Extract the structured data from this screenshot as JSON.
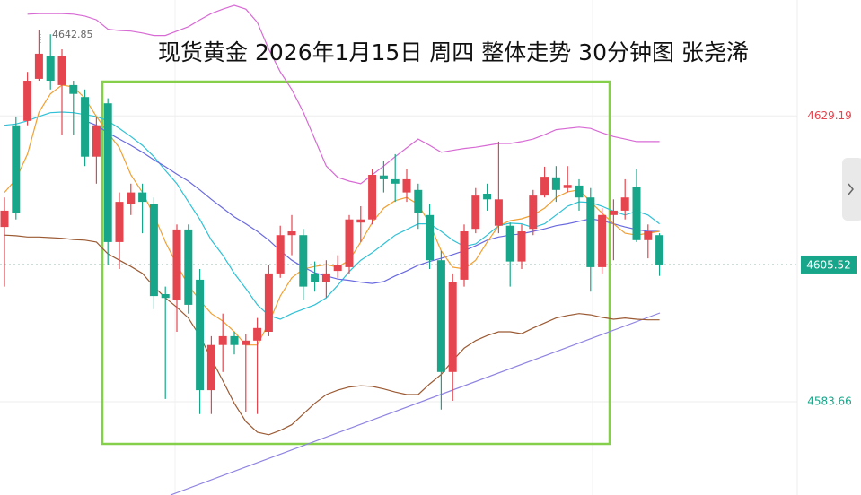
{
  "chart_data": {
    "type": "candlestick",
    "title": "现货黄金 2026年1月15日 周四 整体走势 30分钟图 张尧浠",
    "ylim": [
      4568.8,
      4647.66
    ],
    "yticks": [
      4629.19,
      4605.52,
      4583.66
    ],
    "ytick_colors": [
      "#e5454f",
      "#17a689",
      "#17a689"
    ],
    "ytick_styles": [
      "text",
      "box",
      "text"
    ],
    "grid": true,
    "up_color": "#e5454f",
    "down_color": "#17a689",
    "open": [
      4611.5,
      4627.7,
      4628.4,
      4635.1,
      4638.8,
      4634.1,
      4634.1,
      4632.2,
      4622.7,
      4631.2,
      4609.1,
      4615.1,
      4617.0,
      4615.1,
      4600.8,
      4599.8,
      4611.1,
      4603.1,
      4585.5,
      4592.7,
      4594.1,
      4592.7,
      4593.4,
      4594.8,
      4604.1,
      4610.2,
      4610.2,
      4604.1,
      4602.7,
      4604.5,
      4605.1,
      4612.2,
      4612.7,
      4619.7,
      4619.1,
      4617.0,
      4617.4,
      4613.4,
      4606.2,
      4588.4,
      4603.1,
      4611.2,
      4616.8,
      4611.7,
      4611.7,
      4606.0,
      4611.2,
      4616.5,
      4619.4,
      4617.7,
      4618.1,
      4616.2,
      4605.1,
      4613.4,
      4614.1,
      4617.9,
      4609.4,
      4610.2
    ],
    "high": [
      4616.2,
      4629.1,
      4636.2,
      4642.85,
      4642.2,
      4639.8,
      4634.8,
      4633.4,
      4629.1,
      4632.0,
      4617.0,
      4618.4,
      4618.4,
      4616.2,
      4602.0,
      4611.9,
      4611.9,
      4604.8,
      4594.1,
      4597.7,
      4594.8,
      4594.5,
      4597.0,
      4605.5,
      4611.7,
      4613.4,
      4611.2,
      4606.0,
      4606.2,
      4607.0,
      4613.4,
      4614.8,
      4620.8,
      4622.0,
      4623.1,
      4620.8,
      4618.4,
      4615.1,
      4607.7,
      4604.1,
      4611.9,
      4617.7,
      4618.4,
      4625.1,
      4612.2,
      4611.9,
      4617.4,
      4621.1,
      4621.2,
      4621.2,
      4619.1,
      4617.7,
      4614.5,
      4615.9,
      4619.1,
      4620.8,
      4611.9,
      4610.5
    ],
    "low": [
      4602.0,
      4612.7,
      4627.7,
      4634.8,
      4633.4,
      4626.2,
      4626.2,
      4621.2,
      4618.4,
      4605.5,
      4604.8,
      4613.4,
      4610.5,
      4598.4,
      4584.1,
      4594.8,
      4597.7,
      4581.7,
      4581.7,
      4588.4,
      4591.2,
      4582.0,
      4581.7,
      4594.1,
      4603.4,
      4607.0,
      4599.8,
      4601.2,
      4600.2,
      4603.4,
      4604.1,
      4609.1,
      4611.9,
      4617.0,
      4615.5,
      4615.5,
      4611.2,
      4604.8,
      4582.4,
      4583.8,
      4602.0,
      4610.5,
      4614.1,
      4610.5,
      4602.0,
      4604.8,
      4610.2,
      4616.2,
      4615.5,
      4617.0,
      4614.1,
      4601.2,
      4604.1,
      4606.2,
      4612.7,
      4609.1,
      4606.5,
      4603.7
    ],
    "close": [
      4614.1,
      4613.7,
      4634.8,
      4639.1,
      4634.8,
      4638.8,
      4632.7,
      4622.7,
      4627.7,
      4609.1,
      4615.5,
      4617.0,
      4615.5,
      4600.5,
      4600.2,
      4611.1,
      4599.1,
      4585.5,
      4592.7,
      4594.1,
      4592.7,
      4593.4,
      4595.4,
      4604.1,
      4610.2,
      4610.8,
      4602.0,
      4602.7,
      4604.1,
      4605.5,
      4612.7,
      4612.7,
      4619.8,
      4619.1,
      4618.4,
      4619.1,
      4613.7,
      4606.2,
      4588.4,
      4602.7,
      4610.8,
      4616.5,
      4615.9,
      4615.9,
      4606.0,
      4610.8,
      4616.5,
      4619.5,
      4617.4,
      4618.2,
      4616.2,
      4605.1,
      4613.4,
      4614.1,
      4616.2,
      4609.4,
      4610.8,
      4605.52
    ],
    "series": [
      {
        "color": "#d76ad4",
        "values": [
          null,
          null,
          4645.4,
          4645.5,
          4645.5,
          4645.5,
          4645.4,
          4645.1,
          4644.5,
          4643.0,
          4642.8,
          4642.7,
          4642.4,
          4642.0,
          4642.0,
          4642.7,
          4643.4,
          4644.5,
          4645.5,
          4646.2,
          4646.8,
          4646.2,
          4644.1,
          4639.8,
          4636.2,
          4633.4,
          4629.8,
          4625.5,
          4621.2,
          4619.4,
          4618.8,
          4618.4,
          4619.8,
          4621.2,
          4622.7,
          4624.1,
          4625.5,
          4624.5,
          4623.4,
          4623.7,
          4624.0,
          4624.2,
          4624.5,
          4624.8,
          4624.8,
          4625.1,
          4625.5,
          4626.2,
          4627.0,
          4627.2,
          4627.4,
          4627.2,
          4626.5,
          4625.9,
          4625.5,
          4625.1,
          4625.1,
          4625.1
        ]
      },
      {
        "color": "#9b5a33",
        "values": [
          4610.2,
          4610.1,
          4609.9,
          4609.9,
          4609.8,
          4609.7,
          4609.5,
          4609.4,
          4609.1,
          4607.2,
          4606.2,
          4605.2,
          4604.1,
          4602.0,
          4600.2,
          4598.7,
          4597.0,
          4594.1,
          4590.5,
          4587.0,
          4583.4,
          4580.5,
          4578.8,
          4578.4,
          4579.1,
          4580.0,
          4581.7,
          4583.4,
          4584.8,
          4585.5,
          4586.0,
          4586.2,
          4586.1,
          4585.7,
          4585.2,
          4584.8,
          4584.8,
          4586.5,
          4588.0,
          4590.2,
          4592.2,
          4593.4,
          4594.2,
          4594.8,
          4594.8,
          4594.5,
          4595.4,
          4596.2,
          4597.0,
          4597.4,
          4597.7,
          4597.5,
          4597.1,
          4596.8,
          4597.0,
          4596.8,
          4596.7,
          4596.7
        ]
      },
      {
        "color": "#2fc1d6",
        "values": [
          4627.7,
          4627.9,
          4628.4,
          4629.1,
          4629.7,
          4629.8,
          4629.7,
          4629.4,
          4629.1,
          4628.4,
          4627.2,
          4625.9,
          4624.5,
          4622.7,
          4620.5,
          4618.4,
          4615.5,
          4612.7,
          4609.4,
          4607.0,
          4604.1,
          4601.7,
          4599.1,
          4597.4,
          4596.8,
          4597.7,
          4598.4,
          4599.1,
          4600.2,
          4602.2,
          4604.4,
          4606.2,
          4607.4,
          4608.8,
          4610.2,
          4611.1,
          4612.0,
          4612.0,
          4610.8,
          4609.4,
          4608.4,
          4608.8,
          4610.2,
          4611.7,
          4612.1,
          4612.0,
          4611.4,
          4612.0,
          4613.4,
          4614.8,
          4615.5,
          4615.4,
          4614.8,
          4614.0,
          4613.4,
          4614.0,
          4613.4,
          4612.0
        ]
      },
      {
        "color": "#6a6ae0",
        "values": [
          null,
          null,
          null,
          null,
          null,
          null,
          null,
          4628.4,
          4627.7,
          4626.5,
          4625.5,
          4624.5,
          4623.4,
          4622.2,
          4621.1,
          4619.9,
          4618.8,
          4617.4,
          4615.9,
          4614.5,
          4613.1,
          4612.0,
          4610.8,
          4609.4,
          4607.7,
          4606.2,
          4605.1,
          4604.2,
          4603.7,
          4603.2,
          4603.0,
          4602.7,
          4602.5,
          4602.8,
          4603.7,
          4604.5,
          4605.4,
          4606.0,
          4606.5,
          4607.1,
          4607.7,
          4608.5,
          4609.4,
          4609.9,
          4610.2,
          4610.4,
          4610.8,
          4611.2,
          4611.7,
          4612.0,
          4612.4,
          4612.8,
          4612.5,
          4612.0,
          4611.5,
          4611.1,
          4610.8,
          4610.8
        ]
      },
      {
        "color": "#f0a033",
        "values": [
          4617.0,
          4619.1,
          4623.1,
          4629.8,
          4632.7,
          4634.1,
          4633.8,
          4632.0,
          4629.1,
          4626.5,
          4624.1,
          4619.8,
          4617.0,
          4613.4,
          4609.1,
          4605.5,
          4602.2,
          4599.8,
          4597.7,
          4596.5,
          4594.8,
          4592.7,
          4592.7,
          4596.2,
          4600.5,
          4603.4,
          4604.8,
          4605.2,
          4605.5,
          4605.1,
          4606.2,
          4609.1,
          4612.2,
          4614.5,
          4615.7,
          4616.2,
          4615.1,
          4612.0,
          4607.7,
          4605.1,
          4604.8,
          4606.2,
          4609.1,
          4611.7,
          4612.5,
          4612.8,
          4613.4,
          4614.5,
          4616.2,
          4617.1,
          4617.4,
          4615.5,
          4613.7,
          4612.0,
          4610.5,
          4610.2,
          4610.5,
          4610.8
        ]
      }
    ]
  }
}
